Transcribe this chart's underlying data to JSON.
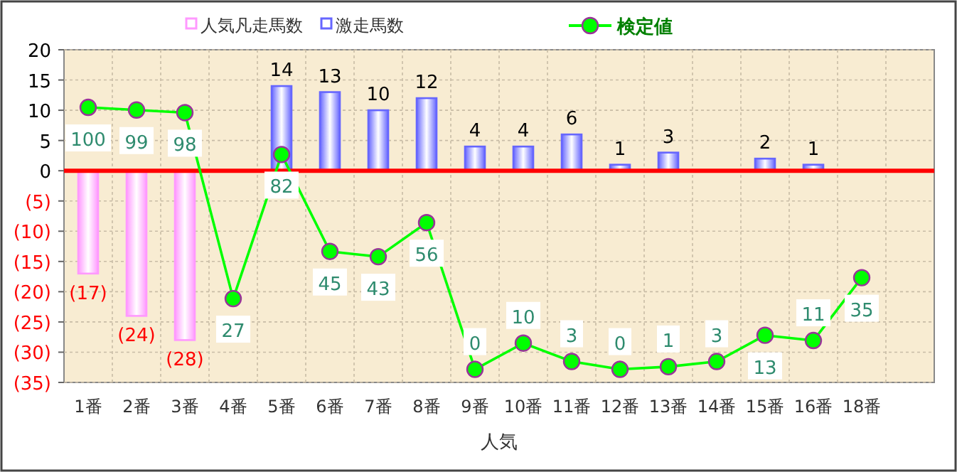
{
  "chart_data": {
    "type": "bar",
    "xlabel": "人気",
    "categories": [
      "1番",
      "2番",
      "3番",
      "4番",
      "5番",
      "6番",
      "7番",
      "8番",
      "9番",
      "10番",
      "11番",
      "12番",
      "13番",
      "14番",
      "15番",
      "16番",
      "18番",
      null
    ],
    "series": [
      {
        "name": "人気凡走馬数",
        "color": "#ff99ff",
        "values": [
          -17,
          -24,
          -28,
          null,
          null,
          null,
          null,
          null,
          null,
          null,
          null,
          null,
          null,
          null,
          null,
          null,
          null,
          null
        ],
        "value_labels": [
          "(17)",
          "(24)",
          "(28)",
          null,
          null,
          null,
          null,
          null,
          null,
          null,
          null,
          null,
          null,
          null,
          null,
          null,
          null,
          null
        ]
      },
      {
        "name": "激走馬数",
        "color": "#6666ff",
        "values": [
          null,
          null,
          null,
          null,
          14,
          13,
          10,
          12,
          4,
          4,
          6,
          1,
          3,
          null,
          2,
          1,
          null,
          null
        ],
        "value_labels": [
          null,
          null,
          null,
          null,
          "14",
          "13",
          "10",
          "12",
          "4",
          "4",
          "6",
          "1",
          "3",
          null,
          "2",
          "1",
          null,
          null
        ]
      },
      {
        "name": "検定値",
        "type": "line",
        "axis": "y2",
        "color": "#00ff00",
        "marker": "circle",
        "values": [
          100,
          99,
          98,
          27,
          82,
          45,
          43,
          56,
          0,
          10,
          3,
          0,
          1,
          3,
          13,
          11,
          35,
          null
        ],
        "value_labels": [
          "100",
          "99",
          "98",
          "27",
          "82",
          "45",
          "43",
          "56",
          "0",
          "10",
          "3",
          "0",
          "1",
          "3",
          "13",
          "11",
          "35",
          null
        ]
      }
    ],
    "ylim": [
      -35,
      20
    ],
    "yticks": [
      {
        "value": -35,
        "label": "(35)"
      },
      {
        "value": -30,
        "label": "(30)"
      },
      {
        "value": -25,
        "label": "(25)"
      },
      {
        "value": -20,
        "label": "(20)"
      },
      {
        "value": -15,
        "label": "(15)"
      },
      {
        "value": -10,
        "label": "(10)"
      },
      {
        "value": -5,
        "label": "(5)"
      },
      0,
      5,
      10,
      15,
      20
    ],
    "y2lim": [
      -5,
      122
    ],
    "ref_lines": [
      {
        "axis": "y",
        "value": 0,
        "color": "#ff0000"
      }
    ],
    "grid": true,
    "legend": "top"
  }
}
